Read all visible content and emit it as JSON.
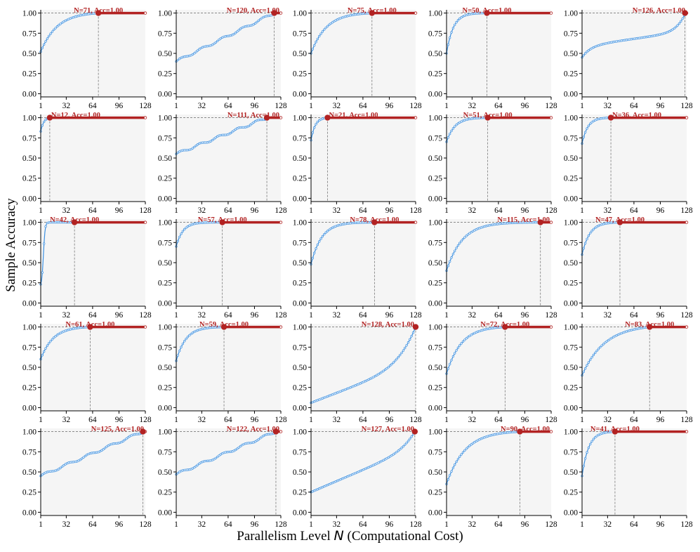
{
  "figure": {
    "ylabel": "Sample Accuracy",
    "xlabel_prefix": "Parallelism Level ",
    "xlabel_symbol": "N",
    "xlabel_suffix": " (Computational Cost)"
  },
  "chart_data": {
    "type": "line",
    "layout": "grid-5x5",
    "xlim": [
      1,
      128
    ],
    "ylim": [
      0,
      1
    ],
    "xticks": [
      1,
      32,
      64,
      96,
      128
    ],
    "yticks": [
      "0.00",
      "0.25",
      "0.50",
      "0.75",
      "1.00"
    ],
    "colors": {
      "line": "#3b8fe0",
      "marker": "#b22222",
      "annotation": "#b22222",
      "fill": "#f5f5f5"
    },
    "panels": [
      {
        "n": 71,
        "acc": "1.00",
        "label": "N=71, Acc=1.00",
        "start": 0.52,
        "shape": "concave",
        "k": 3.5
      },
      {
        "n": 120,
        "acc": "1.00",
        "label": "N=120, Acc=1.00",
        "start": 0.4,
        "shape": "linear"
      },
      {
        "n": 75,
        "acc": "1.00",
        "label": "N=75, Acc=1.00",
        "start": 0.5,
        "shape": "concave",
        "k": 4.0
      },
      {
        "n": 50,
        "acc": "1.00",
        "label": "N=50, Acc=1.00",
        "start": 0.5,
        "shape": "concave",
        "k": 6.0
      },
      {
        "n": 126,
        "acc": "1.00",
        "label": "N=126, Acc=1.00",
        "start": 0.45,
        "shape": "plateau"
      },
      {
        "n": 12,
        "acc": "1.00",
        "label": "N=12, Acc=1.00",
        "start": 0.83,
        "shape": "concave",
        "k": 3.0
      },
      {
        "n": 111,
        "acc": "1.00",
        "label": "N=111, Acc=1.00",
        "start": 0.55,
        "shape": "linear"
      },
      {
        "n": 21,
        "acc": "1.00",
        "label": "N=21, Acc=1.00",
        "start": 0.72,
        "shape": "concave",
        "k": 4.0
      },
      {
        "n": 51,
        "acc": "1.00",
        "label": "N=51, Acc=1.00",
        "start": 0.7,
        "shape": "concave",
        "k": 5.0
      },
      {
        "n": 36,
        "acc": "1.00",
        "label": "N=36, Acc=1.00",
        "start": 0.68,
        "shape": "concave",
        "k": 5.0
      },
      {
        "n": 42,
        "acc": "1.00",
        "label": "N=42, Acc=1.00",
        "start": 0.2,
        "shape": "sigmoid"
      },
      {
        "n": 57,
        "acc": "1.00",
        "label": "N=57, Acc=1.00",
        "start": 0.7,
        "shape": "concave",
        "k": 7.0
      },
      {
        "n": 78,
        "acc": "1.00",
        "label": "N=78, Acc=1.00",
        "start": 0.48,
        "shape": "concave",
        "k": 6.0
      },
      {
        "n": 115,
        "acc": "1.00",
        "label": "N=115, Acc=1.00",
        "start": 0.4,
        "shape": "concave",
        "k": 6.0
      },
      {
        "n": 47,
        "acc": "1.00",
        "label": "N=47, Acc=1.00",
        "start": 0.6,
        "shape": "concave",
        "k": 5.0
      },
      {
        "n": 61,
        "acc": "1.00",
        "label": "N=61, Acc=1.00",
        "start": 0.6,
        "shape": "concave",
        "k": 4.0
      },
      {
        "n": 59,
        "acc": "1.00",
        "label": "N=59, Acc=1.00",
        "start": 0.58,
        "shape": "concave",
        "k": 5.0
      },
      {
        "n": 128,
        "acc": "1.00",
        "label": "N=128, Acc=1.00",
        "start": 0.06,
        "shape": "convex"
      },
      {
        "n": 72,
        "acc": "1.00",
        "label": "N=72, Acc=1.00",
        "start": 0.42,
        "shape": "concave",
        "k": 4.0
      },
      {
        "n": 83,
        "acc": "1.00",
        "label": "N=83, Acc=1.00",
        "start": 0.4,
        "shape": "concave",
        "k": 3.0
      },
      {
        "n": 125,
        "acc": "1.00",
        "label": "N=125, Acc=1.00",
        "start": 0.45,
        "shape": "linear"
      },
      {
        "n": 122,
        "acc": "1.00",
        "label": "N=122, Acc=1.00",
        "start": 0.47,
        "shape": "linear"
      },
      {
        "n": 127,
        "acc": "1.00",
        "label": "N=127, Acc=1.00",
        "start": 0.25,
        "shape": "linearconvex"
      },
      {
        "n": 90,
        "acc": "1.00",
        "label": "N=90, Acc=1.00",
        "start": 0.35,
        "shape": "concave",
        "k": 4.0
      },
      {
        "n": 41,
        "acc": "1.00",
        "label": "N=41, Acc=1.00",
        "start": 0.45,
        "shape": "concave",
        "k": 5.0
      }
    ]
  }
}
